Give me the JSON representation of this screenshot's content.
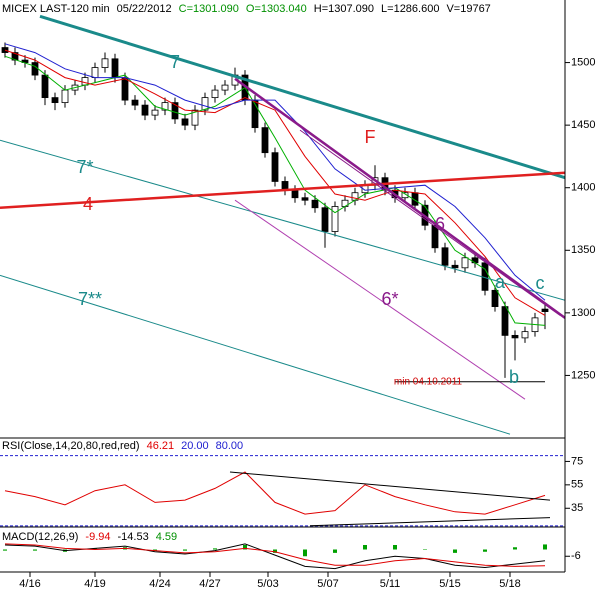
{
  "chart_data": [
    {
      "type": "candlestick",
      "title_parts": [
        {
          "text": "MICEX LAST-120 min",
          "color": "#000000"
        },
        {
          "text": "05/22/2012",
          "color": "#000000"
        },
        {
          "text": "C=1301.090",
          "color": "#009000"
        },
        {
          "text": "O=1303.040",
          "color": "#009000"
        },
        {
          "text": "H=1307.090",
          "color": "#000000"
        },
        {
          "text": "L=1286.600",
          "color": "#000000"
        },
        {
          "text": "V=19767",
          "color": "#000000"
        }
      ],
      "candles": [
        [
          1512,
          1516,
          1504,
          1508
        ],
        [
          1508,
          1512,
          1498,
          1502
        ],
        [
          1502,
          1506,
          1496,
          1500
        ],
        [
          1500,
          1504,
          1486,
          1490
        ],
        [
          1490,
          1494,
          1466,
          1472
        ],
        [
          1472,
          1476,
          1462,
          1468
        ],
        [
          1468,
          1482,
          1464,
          1478
        ],
        [
          1478,
          1486,
          1474,
          1482
        ],
        [
          1482,
          1492,
          1478,
          1488
        ],
        [
          1488,
          1500,
          1484,
          1496
        ],
        [
          1496,
          1508,
          1492,
          1503
        ],
        [
          1503,
          1507,
          1484,
          1488
        ],
        [
          1488,
          1492,
          1466,
          1470
        ],
        [
          1470,
          1474,
          1462,
          1466
        ],
        [
          1466,
          1470,
          1454,
          1458
        ],
        [
          1458,
          1466,
          1454,
          1462
        ],
        [
          1462,
          1472,
          1458,
          1468
        ],
        [
          1468,
          1472,
          1451,
          1455
        ],
        [
          1455,
          1459,
          1446,
          1450
        ],
        [
          1450,
          1466,
          1446,
          1462
        ],
        [
          1462,
          1476,
          1458,
          1472
        ],
        [
          1472,
          1482,
          1468,
          1478
        ],
        [
          1478,
          1486,
          1474,
          1482
        ],
        [
          1482,
          1496,
          1478,
          1490
        ],
        [
          1490,
          1494,
          1466,
          1470
        ],
        [
          1470,
          1474,
          1444,
          1448
        ],
        [
          1448,
          1452,
          1424,
          1428
        ],
        [
          1428,
          1432,
          1401,
          1405
        ],
        [
          1405,
          1409,
          1394,
          1398
        ],
        [
          1398,
          1402,
          1388,
          1392
        ],
        [
          1392,
          1396,
          1386,
          1390
        ],
        [
          1390,
          1394,
          1380,
          1384
        ],
        [
          1384,
          1388,
          1352,
          1365
        ],
        [
          1365,
          1389,
          1361,
          1385
        ],
        [
          1385,
          1394,
          1381,
          1390
        ],
        [
          1390,
          1400,
          1386,
          1396
        ],
        [
          1396,
          1406,
          1392,
          1402
        ],
        [
          1402,
          1418,
          1398,
          1408
        ],
        [
          1408,
          1412,
          1394,
          1398
        ],
        [
          1398,
          1402,
          1388,
          1392
        ],
        [
          1392,
          1400,
          1388,
          1396
        ],
        [
          1396,
          1400,
          1382,
          1386
        ],
        [
          1386,
          1390,
          1366,
          1370
        ],
        [
          1370,
          1374,
          1348,
          1352
        ],
        [
          1352,
          1356,
          1334,
          1338
        ],
        [
          1338,
          1342,
          1332,
          1336
        ],
        [
          1336,
          1348,
          1332,
          1344
        ],
        [
          1344,
          1348,
          1336,
          1340
        ],
        [
          1340,
          1344,
          1314,
          1318
        ],
        [
          1318,
          1322,
          1301,
          1305
        ],
        [
          1305,
          1309,
          1248,
          1282
        ],
        [
          1282,
          1286,
          1262,
          1280
        ],
        [
          1280,
          1289,
          1276,
          1285
        ],
        [
          1285,
          1300,
          1281,
          1296
        ],
        [
          1303,
          1307,
          1287,
          1301
        ]
      ],
      "up_color": "#ffffff",
      "down_color": "#000000",
      "xlim": [
        0,
        56.5
      ],
      "xticks": [
        {
          "value": 3,
          "label": "4/16"
        },
        {
          "value": 9.5,
          "label": "4/19"
        },
        {
          "value": 16,
          "label": "4/24"
        },
        {
          "value": 21,
          "label": "4/27"
        },
        {
          "value": 26.8,
          "label": "5/03"
        },
        {
          "value": 32.8,
          "label": "5/07"
        },
        {
          "value": 39,
          "label": "5/11"
        },
        {
          "value": 45,
          "label": "5/15"
        },
        {
          "value": 51,
          "label": "5/18"
        }
      ],
      "ylim": [
        1200,
        1550
      ],
      "yticks": [
        1250,
        1300,
        1350,
        1400,
        1450,
        1500
      ],
      "overlays": [
        {
          "color": "#00b000",
          "x": [
            0.5,
            3.5,
            6.5,
            9.5,
            12.5,
            15.5,
            18.5,
            21.5,
            24.5,
            27.5,
            30.5,
            33.5,
            36.5,
            39.5,
            42.5,
            45.5,
            48.5,
            51.5,
            54.5
          ],
          "values": [
            1505,
            1497,
            1478,
            1484,
            1490,
            1465,
            1458,
            1465,
            1480,
            1440,
            1398,
            1380,
            1395,
            1400,
            1385,
            1350,
            1335,
            1292,
            1290
          ]
        },
        {
          "color": "#e00000",
          "x": [
            0.5,
            3.5,
            6.5,
            9.5,
            12.5,
            15.5,
            18.5,
            21.5,
            24.5,
            27.5,
            30.5,
            33.5,
            36.5,
            39.5,
            42.5,
            45.5,
            48.5,
            51.5,
            54.5
          ],
          "values": [
            1510,
            1502,
            1488,
            1482,
            1487,
            1475,
            1462,
            1460,
            1472,
            1462,
            1425,
            1395,
            1390,
            1398,
            1395,
            1372,
            1345,
            1312,
            1298
          ]
        },
        {
          "color": "#2020d0",
          "x": [
            0.5,
            3.5,
            6.5,
            9.5,
            12.5,
            15.5,
            18.5,
            21.5,
            24.5,
            27.5,
            30.5,
            33.5,
            36.5,
            39.5,
            42.5,
            45.5,
            48.5,
            51.5,
            54.5
          ],
          "values": [
            1515,
            1508,
            1495,
            1488,
            1488,
            1482,
            1470,
            1463,
            1470,
            1470,
            1445,
            1415,
            1398,
            1400,
            1402,
            1385,
            1360,
            1330,
            1310
          ]
        }
      ],
      "trendlines": [
        {
          "label": "7",
          "color": "#1a8a8a",
          "width": 3,
          "x": [
            4,
            56.5
          ],
          "y": [
            1537,
            1408
          ]
        },
        {
          "label": "7*",
          "color": "#1a8a8a",
          "width": 1,
          "x": [
            0,
            56.5
          ],
          "y": [
            1438,
            1310
          ]
        },
        {
          "label": "7**",
          "color": "#1a8a8a",
          "width": 1,
          "x": [
            0,
            51
          ],
          "y": [
            1330,
            1203
          ]
        },
        {
          "label": "4",
          "color": "#e02020",
          "width": 2.5,
          "x": [
            0,
            56.5
          ],
          "y": [
            1384,
            1412
          ]
        },
        {
          "label": "F",
          "color": "#8a1a8a",
          "width": 2.5,
          "x": [
            23.5,
            56.5
          ],
          "y": [
            1487,
            1296
          ],
          "label_color": "#e02020"
        },
        {
          "label": "6",
          "color": "#8a1a8a",
          "width": 1,
          "x": [
            30,
            56
          ],
          "y": [
            1446,
            1298
          ]
        },
        {
          "label": "6*",
          "color": "#b040b0",
          "width": 1,
          "x": [
            23.5,
            52.5
          ],
          "y": [
            1390,
            1231
          ],
          "label_color": "#8a1a8a"
        },
        {
          "label": "min 04.10.2011",
          "color": "#000000",
          "width": 1,
          "x": [
            39.5,
            54.5
          ],
          "y": [
            1245,
            1245
          ],
          "label_color": "#d00000"
        }
      ],
      "annotations": [
        {
          "text": "a",
          "color": "#1a8a8a"
        },
        {
          "text": "b",
          "color": "#1a8a8a"
        },
        {
          "text": "c",
          "color": "#1a8a8a"
        }
      ]
    },
    {
      "type": "line",
      "title_parts": [
        {
          "text": "RSI(Close,14,20,80,red,red)",
          "color": "#000000"
        },
        {
          "text": "46.21",
          "color": "#e00000"
        },
        {
          "text": "20.00",
          "color": "#2020d0"
        },
        {
          "text": "80.00",
          "color": "#2020d0"
        }
      ],
      "x": [
        0.5,
        3.5,
        6.5,
        9.5,
        12.5,
        15.5,
        18.5,
        21.5,
        24.5,
        27.5,
        30.5,
        33.5,
        36.5,
        39.5,
        42.5,
        45.5,
        48.5,
        51.5,
        54.5
      ],
      "series": [
        {
          "color": "#e00000",
          "values": [
            50,
            45,
            38,
            50,
            55,
            40,
            42,
            52,
            66,
            40,
            30,
            33,
            55,
            45,
            38,
            32,
            30,
            38,
            46
          ]
        }
      ],
      "bands": [
        20,
        80
      ],
      "band_color": "#2020d0",
      "ylim": [
        19,
        95
      ],
      "yticks": [
        35,
        55,
        75
      ],
      "trendlines": [
        {
          "color": "#000000",
          "width": 1,
          "x": [
            23,
            55
          ],
          "y": [
            66,
            42
          ]
        },
        {
          "color": "#000000",
          "width": 1,
          "x": [
            31,
            55
          ],
          "y": [
            20,
            27
          ]
        }
      ]
    },
    {
      "type": "macd",
      "title_parts": [
        {
          "text": "MACD(12,26,9)",
          "color": "#000000"
        },
        {
          "text": "-9.94",
          "color": "#e00000"
        },
        {
          "text": "-14.53",
          "color": "#000000"
        },
        {
          "text": "4.59",
          "color": "#009000"
        }
      ],
      "x": [
        0.5,
        3.5,
        6.5,
        9.5,
        12.5,
        15.5,
        18.5,
        21.5,
        24.5,
        27.5,
        30.5,
        33.5,
        36.5,
        39.5,
        42.5,
        45.5,
        48.5,
        51.5,
        54.5
      ],
      "series": [
        {
          "color": "#000000",
          "values": [
            4,
            3,
            -1,
            1,
            3,
            -2,
            -4,
            -1,
            5,
            -5,
            -15,
            -17,
            -10,
            -6,
            -8,
            -14,
            -16,
            -13,
            -10
          ]
        },
        {
          "color": "#e00000",
          "values": [
            5,
            4,
            1,
            0,
            1,
            -1,
            -3,
            -2,
            1,
            -2,
            -9,
            -14,
            -14,
            -10,
            -8,
            -11,
            -14,
            -15,
            -14.5
          ]
        }
      ],
      "histogram": {
        "color": "#00a000",
        "values": [
          -1,
          -1,
          -2,
          1,
          2,
          -1,
          -1,
          1,
          4,
          -3,
          -6,
          -3,
          4,
          4,
          0,
          -3,
          -2,
          2,
          4.5
        ]
      },
      "ylim": [
        -20,
        20
      ],
      "yticks": [
        -6
      ]
    }
  ]
}
